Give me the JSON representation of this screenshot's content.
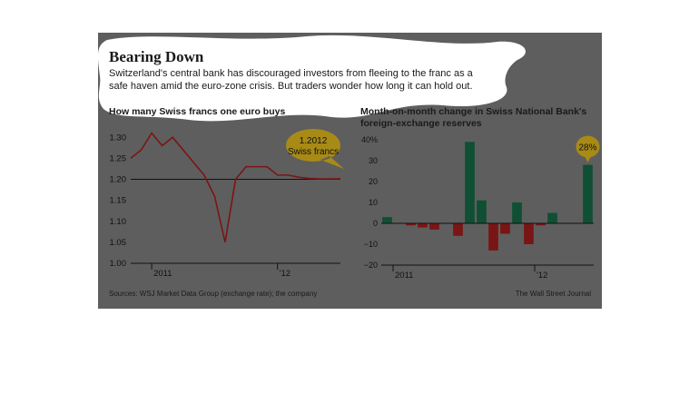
{
  "header": {
    "title": "Bearing Down",
    "subtitle_line1": "Switzerland's central bank has discouraged investors from fleeing to the franc as a",
    "subtitle_line2": "safe haven amid the euro-zone crisis. But traders wonder how long it can hold out."
  },
  "footer": {
    "sources": "Sources: WSJ Market Data Group (exchange rate); the company",
    "credit": "The Wall Street Journal"
  },
  "colors": {
    "background": "#5e5e5e",
    "line": "#7a1515",
    "positive_bar": "#0f4f34",
    "negative_bar": "#7a1515",
    "annotation_fill": "#a88a16"
  },
  "chart_data": [
    {
      "type": "line",
      "title": "How many Swiss francs one euro buys",
      "xlabel": "",
      "ylabel": "",
      "ylim": [
        1.0,
        1.32
      ],
      "yticks": [
        "1.30",
        "1.25",
        "1.20",
        "1.15",
        "1.10",
        "1.05",
        "1.00"
      ],
      "x_tick_labels": [
        "2011",
        "'12"
      ],
      "reference_line": 1.2,
      "annotation": {
        "line1": "1.2012",
        "line2": "Swiss francs",
        "value": 1.2012
      },
      "series": [
        {
          "x": [
            "2010-11",
            "2010-12",
            "2011-01",
            "2011-02",
            "2011-03",
            "2011-04",
            "2011-05",
            "2011-06",
            "2011-07",
            "2011-08",
            "2011-09",
            "2011-10",
            "2011-11",
            "2011-12",
            "2012-01",
            "2012-02",
            "2012-03",
            "2012-04",
            "2012-05",
            "2012-06",
            "2012-07"
          ],
          "values": [
            1.25,
            1.27,
            1.31,
            1.28,
            1.3,
            1.27,
            1.24,
            1.21,
            1.16,
            1.05,
            1.2,
            1.23,
            1.23,
            1.23,
            1.21,
            1.21,
            1.205,
            1.202,
            1.201,
            1.201,
            1.2012
          ]
        }
      ]
    },
    {
      "type": "bar",
      "title_line1": "Month-on-month change in Swiss National Bank's",
      "title_line2": "foreign-exchange reserves",
      "xlabel": "",
      "ylabel": "",
      "ylim": [
        -20,
        40
      ],
      "yticks": [
        "40%",
        "30",
        "20",
        "10",
        "0",
        "−10",
        "−20"
      ],
      "x_tick_labels": [
        "2011",
        "'12"
      ],
      "annotation": {
        "label": "28%",
        "value": 28
      },
      "categories": [
        "Dec 2010",
        "Jan 2011",
        "Feb 2011",
        "Mar 2011",
        "Apr 2011",
        "May 2011",
        "Jun 2011",
        "Jul 2011",
        "Aug 2011",
        "Sep 2011",
        "Oct 2011",
        "Nov 2011",
        "Dec 2011",
        "Jan 2012",
        "Feb 2012",
        "Mar 2012",
        "Apr 2012",
        "May 2012"
      ],
      "values": [
        3,
        0,
        -1,
        -2,
        -3,
        0,
        -6,
        39,
        11,
        -13,
        -5,
        10,
        -10,
        -1,
        5,
        0,
        0,
        28
      ]
    }
  ]
}
